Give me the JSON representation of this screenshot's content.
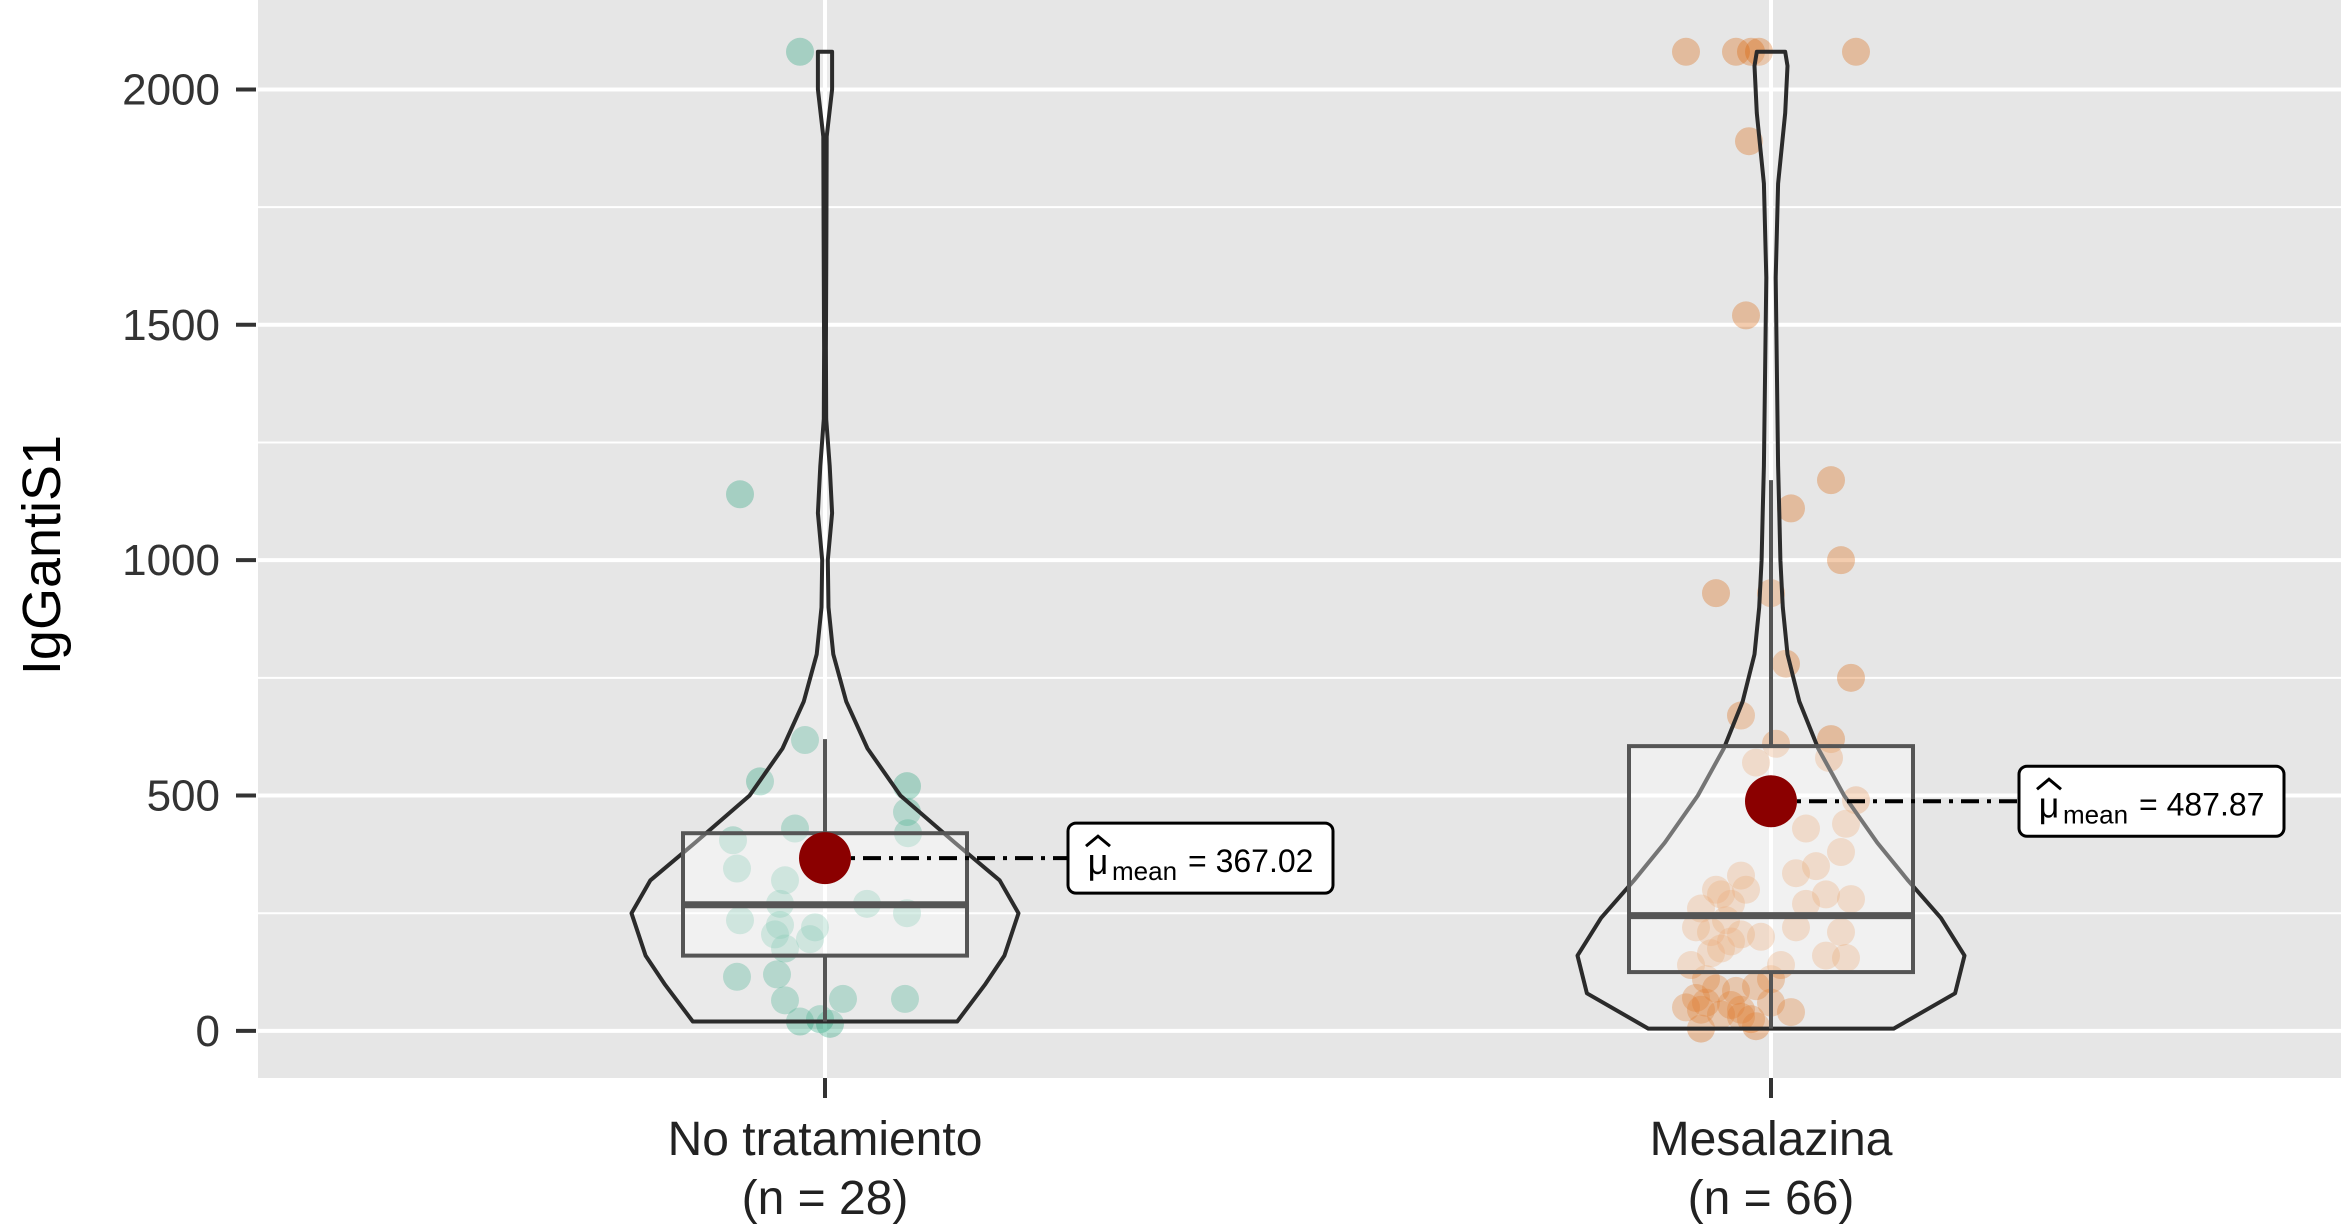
{
  "chart_data": {
    "type": "violin",
    "ylabel": "IgGantiS1",
    "xlabel": "",
    "ylim": [
      -100,
      2190
    ],
    "yticks": [
      0,
      500,
      1000,
      1500,
      2000
    ],
    "ytick_labels": [
      "0",
      "500",
      "1000",
      "1500",
      "2000"
    ],
    "grid": true,
    "groups": [
      {
        "name": "No tratamiento",
        "n_label": "(n = 28)",
        "color": "#1B9E77",
        "box": {
          "q1": 160,
          "median": 268,
          "q3": 420,
          "whisker_low": 20,
          "whisker_high": 620
        },
        "mean": 367.02,
        "mean_symbol": "μ",
        "mean_subscript": "mean",
        "mean_text": "= 367.02",
        "violin": [
          [
            20,
            0.56
          ],
          [
            100,
            0.68
          ],
          [
            160,
            0.76
          ],
          [
            250,
            0.82
          ],
          [
            320,
            0.74
          ],
          [
            400,
            0.55
          ],
          [
            500,
            0.32
          ],
          [
            600,
            0.18
          ],
          [
            700,
            0.09
          ],
          [
            800,
            0.035
          ],
          [
            900,
            0.015
          ],
          [
            1000,
            0.012
          ],
          [
            1100,
            0.03
          ],
          [
            1200,
            0.02
          ],
          [
            1300,
            0.005
          ],
          [
            1450,
            0.004
          ],
          [
            1700,
            0.006
          ],
          [
            1900,
            0.007
          ],
          [
            2000,
            0.03
          ],
          [
            2080,
            0.03
          ]
        ],
        "points": [
          [
            -25,
            2080
          ],
          [
            -85,
            1140
          ],
          [
            -20,
            618
          ],
          [
            -65,
            530
          ],
          [
            82,
            520
          ],
          [
            -30,
            430
          ],
          [
            82,
            465
          ],
          [
            83,
            420
          ],
          [
            -92,
            405
          ],
          [
            -88,
            345
          ],
          [
            -40,
            320
          ],
          [
            42,
            270
          ],
          [
            -45,
            270
          ],
          [
            -85,
            235
          ],
          [
            -45,
            225
          ],
          [
            -10,
            220
          ],
          [
            82,
            250
          ],
          [
            -50,
            205
          ],
          [
            -15,
            195
          ],
          [
            -40,
            175
          ],
          [
            -88,
            115
          ],
          [
            -48,
            120
          ],
          [
            -40,
            65
          ],
          [
            18,
            68
          ],
          [
            80,
            68
          ],
          [
            -25,
            20
          ],
          [
            -5,
            25
          ],
          [
            5,
            15
          ]
        ]
      },
      {
        "name": "Mesalazina",
        "n_label": "(n = 66)",
        "color": "#D95F02",
        "box": {
          "q1": 125,
          "median": 245,
          "q3": 605,
          "whisker_low": 5,
          "whisker_high": 1170
        },
        "mean": 487.87,
        "mean_symbol": "μ",
        "mean_subscript": "mean",
        "mean_text": "= 487.87",
        "violin": [
          [
            5,
            0.52
          ],
          [
            80,
            0.78
          ],
          [
            160,
            0.82
          ],
          [
            240,
            0.72
          ],
          [
            320,
            0.58
          ],
          [
            400,
            0.45
          ],
          [
            500,
            0.31
          ],
          [
            600,
            0.2
          ],
          [
            700,
            0.12
          ],
          [
            800,
            0.07
          ],
          [
            900,
            0.05
          ],
          [
            1000,
            0.04
          ],
          [
            1100,
            0.035
          ],
          [
            1200,
            0.03
          ],
          [
            1400,
            0.025
          ],
          [
            1600,
            0.02
          ],
          [
            1800,
            0.03
          ],
          [
            1950,
            0.06
          ],
          [
            2050,
            0.07
          ],
          [
            2080,
            0.06
          ]
        ],
        "points": [
          [
            -85,
            2080
          ],
          [
            -35,
            2080
          ],
          [
            -20,
            2080
          ],
          [
            -12,
            2080
          ],
          [
            85,
            2080
          ],
          [
            -22,
            1890
          ],
          [
            -25,
            1520
          ],
          [
            60,
            1170
          ],
          [
            20,
            1110
          ],
          [
            70,
            1000
          ],
          [
            -55,
            930
          ],
          [
            0,
            930
          ],
          [
            15,
            780
          ],
          [
            80,
            750
          ],
          [
            -30,
            670
          ],
          [
            60,
            620
          ],
          [
            5,
            610
          ],
          [
            -15,
            570
          ],
          [
            58,
            580
          ],
          [
            85,
            490
          ],
          [
            35,
            430
          ],
          [
            75,
            440
          ],
          [
            70,
            380
          ],
          [
            45,
            350
          ],
          [
            -30,
            330
          ],
          [
            25,
            335
          ],
          [
            -50,
            290
          ],
          [
            -55,
            300
          ],
          [
            -25,
            300
          ],
          [
            -40,
            270
          ],
          [
            55,
            290
          ],
          [
            80,
            280
          ],
          [
            -70,
            260
          ],
          [
            35,
            270
          ],
          [
            -45,
            235
          ],
          [
            -75,
            220
          ],
          [
            -60,
            210
          ],
          [
            25,
            220
          ],
          [
            70,
            210
          ],
          [
            -30,
            205
          ],
          [
            -10,
            200
          ],
          [
            -40,
            190
          ],
          [
            -50,
            175
          ],
          [
            -60,
            165
          ],
          [
            55,
            160
          ],
          [
            75,
            155
          ],
          [
            -80,
            140
          ],
          [
            10,
            140
          ],
          [
            -65,
            110
          ],
          [
            0,
            110
          ],
          [
            -15,
            95
          ],
          [
            -55,
            90
          ],
          [
            -35,
            85
          ],
          [
            -75,
            70
          ],
          [
            -65,
            60
          ],
          [
            0,
            60
          ],
          [
            -40,
            55
          ],
          [
            -85,
            50
          ],
          [
            -70,
            45
          ],
          [
            -30,
            45
          ],
          [
            20,
            40
          ],
          [
            -50,
            35
          ],
          [
            -30,
            30
          ],
          [
            -20,
            25
          ],
          [
            -15,
            10
          ],
          [
            -70,
            5
          ]
        ]
      }
    ]
  }
}
